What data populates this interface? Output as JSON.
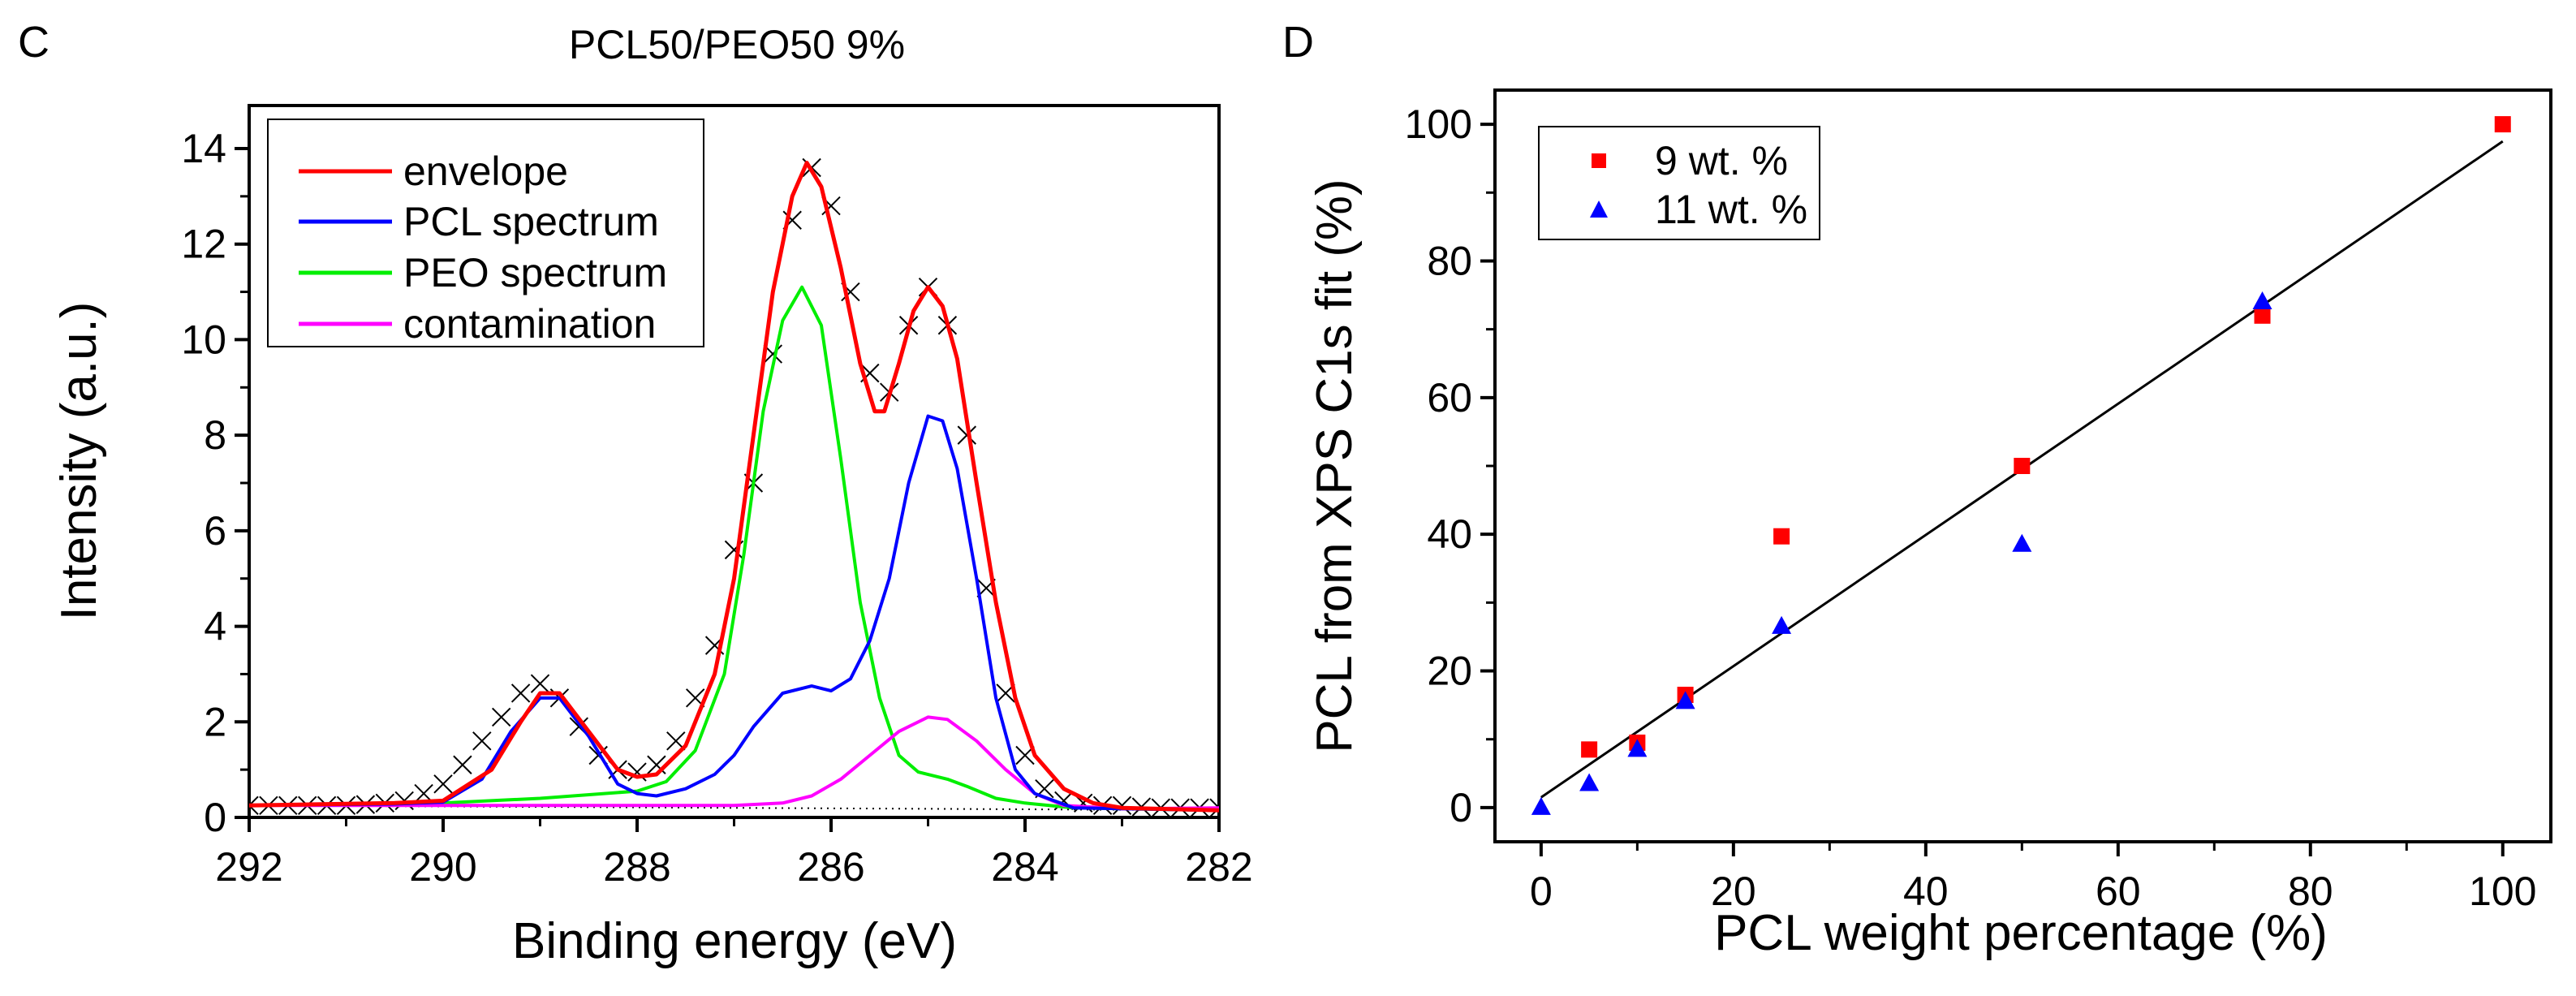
{
  "chart_data": [
    {
      "panel_label": "C",
      "type": "line",
      "title": "PCL50/PEO50 9%",
      "xlabel": "Binding energy (eV)",
      "ylabel": "Intensity (a.u.)",
      "xlim": [
        292,
        282
      ],
      "ylim": [
        0,
        14.9
      ],
      "x_reversed": true,
      "xticks": [
        292,
        290,
        288,
        286,
        284,
        282
      ],
      "yticks": [
        0,
        2,
        4,
        6,
        8,
        10,
        12,
        14
      ],
      "grid": false,
      "legend": "top-left",
      "measured_points": {
        "marker": "cross",
        "color": "#000000",
        "x": [
          292,
          291.8,
          291.6,
          291.4,
          291.2,
          291,
          290.8,
          290.6,
          290.4,
          290.2,
          290,
          289.8,
          289.6,
          289.4,
          289.2,
          289,
          288.8,
          288.6,
          288.4,
          288.2,
          288,
          287.8,
          287.6,
          287.4,
          287.2,
          287,
          286.8,
          286.6,
          286.4,
          286.2,
          286,
          285.8,
          285.6,
          285.4,
          285.2,
          285,
          284.8,
          284.6,
          284.4,
          284.2,
          284,
          283.8,
          283.6,
          283.4,
          283.2,
          283,
          282.8,
          282.6,
          282.4,
          282.2,
          282
        ],
        "y": [
          0.25,
          0.25,
          0.25,
          0.25,
          0.25,
          0.25,
          0.27,
          0.3,
          0.35,
          0.5,
          0.7,
          1.1,
          1.6,
          2.1,
          2.6,
          2.8,
          2.5,
          1.9,
          1.3,
          1.0,
          0.95,
          1.1,
          1.6,
          2.5,
          3.6,
          5.6,
          7.0,
          9.7,
          12.5,
          13.6,
          12.8,
          11.0,
          9.3,
          8.9,
          10.3,
          11.1,
          10.3,
          8.0,
          4.8,
          2.6,
          1.3,
          0.6,
          0.35,
          0.3,
          0.25,
          0.25,
          0.22,
          0.2,
          0.2,
          0.2,
          0.2
        ]
      },
      "baseline": {
        "x": [
          292,
          282
        ],
        "y": [
          0.25,
          0.15
        ],
        "color": "#000000"
      },
      "series": [
        {
          "name": "envelope",
          "color": "#ff0000",
          "x": [
            292,
            290.5,
            290,
            289.5,
            289.2,
            289,
            288.8,
            288.5,
            288.2,
            288,
            287.8,
            287.5,
            287.2,
            287,
            286.8,
            286.6,
            286.4,
            286.25,
            286.1,
            285.9,
            285.7,
            285.55,
            285.45,
            285.3,
            285.15,
            285,
            284.85,
            284.7,
            284.5,
            284.3,
            284.1,
            283.9,
            283.6,
            283.3,
            283,
            282
          ],
          "y": [
            0.25,
            0.3,
            0.35,
            1.0,
            2.0,
            2.6,
            2.6,
            1.8,
            1.0,
            0.85,
            0.9,
            1.5,
            3.0,
            5.0,
            8.0,
            11.0,
            13.0,
            13.7,
            13.2,
            11.5,
            9.5,
            8.5,
            8.5,
            9.5,
            10.6,
            11.1,
            10.7,
            9.6,
            7.0,
            4.5,
            2.5,
            1.3,
            0.6,
            0.3,
            0.2,
            0.15
          ]
        },
        {
          "name": "PCL spectrum",
          "color": "#0000ff",
          "x": [
            292,
            290.5,
            290,
            289.6,
            289.3,
            289,
            288.8,
            288.5,
            288.2,
            288,
            287.8,
            287.5,
            287.2,
            287,
            286.8,
            286.5,
            286.2,
            286,
            285.8,
            285.6,
            285.4,
            285.2,
            285,
            284.85,
            284.7,
            284.5,
            284.3,
            284.1,
            283.9,
            283.5,
            282
          ],
          "y": [
            0.25,
            0.28,
            0.32,
            0.8,
            1.8,
            2.5,
            2.5,
            1.7,
            0.7,
            0.5,
            0.45,
            0.6,
            0.9,
            1.3,
            1.9,
            2.6,
            2.75,
            2.65,
            2.9,
            3.7,
            5.0,
            7.0,
            8.4,
            8.3,
            7.3,
            5.0,
            2.5,
            1.0,
            0.5,
            0.2,
            0.15
          ]
        },
        {
          "name": "PEO spectrum",
          "color": "#00ee00",
          "x": [
            292,
            290,
            289,
            288,
            287.7,
            287.4,
            287.1,
            286.9,
            286.7,
            286.5,
            286.3,
            286.1,
            285.9,
            285.7,
            285.5,
            285.3,
            285.1,
            284.8,
            284.6,
            284.3,
            284,
            283.5,
            282
          ],
          "y": [
            0.25,
            0.3,
            0.4,
            0.55,
            0.75,
            1.4,
            3.0,
            5.5,
            8.5,
            10.4,
            11.1,
            10.3,
            7.5,
            4.5,
            2.5,
            1.3,
            0.95,
            0.8,
            0.65,
            0.4,
            0.3,
            0.2,
            0.15
          ]
        },
        {
          "name": "contamination",
          "color": "#ff00ff",
          "x": [
            292,
            287,
            286.5,
            286.2,
            285.9,
            285.6,
            285.3,
            285,
            284.8,
            284.5,
            284.2,
            283.9,
            283.6,
            283,
            282
          ],
          "y": [
            0.25,
            0.25,
            0.3,
            0.45,
            0.8,
            1.3,
            1.8,
            2.1,
            2.05,
            1.6,
            1.0,
            0.5,
            0.25,
            0.18,
            0.2
          ]
        }
      ]
    },
    {
      "panel_label": "D",
      "type": "scatter",
      "xlabel": "PCL  weight percentage (%)",
      "ylabel": "PCL from XPS C1s fit (%)",
      "xlim": [
        -4.8,
        105
      ],
      "ylim": [
        -5,
        105
      ],
      "xticks": [
        0,
        20,
        40,
        60,
        80,
        100
      ],
      "yticks": [
        0,
        20,
        40,
        60,
        80,
        100
      ],
      "grid": false,
      "legend": "top-left",
      "fit_line": {
        "x": [
          0,
          100
        ],
        "y": [
          1.5,
          97.5
        ],
        "color": "#000000"
      },
      "series": [
        {
          "name": "9 wt. %",
          "marker": "square",
          "color": "#ff0000",
          "x": [
            5,
            10,
            15,
            25,
            50,
            75,
            100
          ],
          "y": [
            8.5,
            9.5,
            16.5,
            39.7,
            50,
            72,
            100
          ]
        },
        {
          "name": "11 wt. %",
          "marker": "triangle",
          "color": "#0000ff",
          "x": [
            0,
            5,
            10,
            15,
            25,
            50,
            75
          ],
          "y": [
            0,
            3.5,
            8.5,
            15.5,
            26.5,
            38.5,
            74
          ]
        }
      ]
    }
  ]
}
